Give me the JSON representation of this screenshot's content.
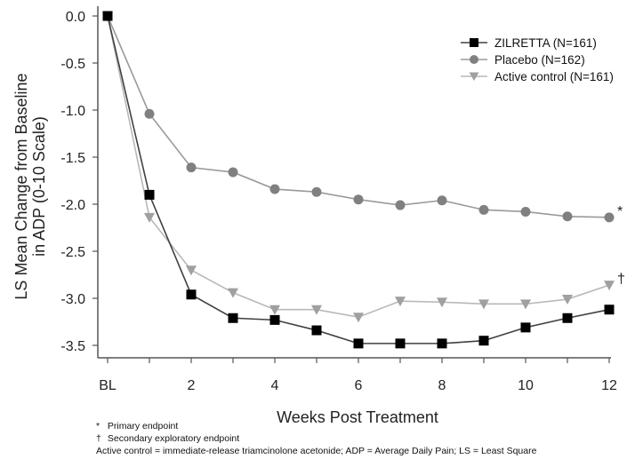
{
  "chart_data": {
    "type": "line",
    "title": "",
    "xlabel": "Weeks Post Treatment",
    "ylabel_lines": [
      "LS Mean Change from Baseline",
      "in ADP (0-10 Scale)"
    ],
    "x": [
      0,
      1,
      2,
      3,
      4,
      5,
      6,
      7,
      8,
      9,
      10,
      11,
      12
    ],
    "x_tick_values": [
      0,
      2,
      4,
      6,
      8,
      10,
      12
    ],
    "x_tick_labels": [
      "BL",
      "2",
      "4",
      "6",
      "8",
      "10",
      "12"
    ],
    "x_minor_ticks": [
      0,
      1,
      2,
      3,
      4,
      5,
      6,
      7,
      8,
      9,
      10,
      11,
      12
    ],
    "xlim": [
      0,
      12
    ],
    "ylim": [
      -3.5,
      0.0
    ],
    "y_ticks": [
      0.0,
      -0.5,
      -1.0,
      -1.5,
      -2.0,
      -2.5,
      -3.0,
      -3.5
    ],
    "y_tick_labels": [
      "0.0",
      "-0.5",
      "-1.0",
      "-1.5",
      "-2.0",
      "-2.5",
      "-3.0",
      "-3.5"
    ],
    "grid": false,
    "legend_position": "top-right",
    "series": [
      {
        "name": "ZILRETTA (N=161)",
        "marker": "square",
        "color": "#000000",
        "line_color": "#404040",
        "values": [
          0.0,
          -1.9,
          -2.96,
          -3.21,
          -3.23,
          -3.34,
          -3.48,
          -3.48,
          -3.48,
          -3.45,
          -3.31,
          -3.21,
          -3.12
        ]
      },
      {
        "name": "Placebo (N=162)",
        "marker": "circle",
        "color": "#808080",
        "line_color": "#9a9a9a",
        "values": [
          0.0,
          -1.04,
          -1.61,
          -1.66,
          -1.84,
          -1.87,
          -1.95,
          -2.01,
          -1.96,
          -2.06,
          -2.08,
          -2.13,
          -2.14
        ],
        "end_annotation": "*"
      },
      {
        "name": "Active control (N=161)",
        "marker": "triangle-down",
        "color": "#a0a0a0",
        "line_color": "#b8b8b8",
        "values": [
          0.0,
          -2.14,
          -2.7,
          -2.94,
          -3.12,
          -3.12,
          -3.2,
          -3.03,
          -3.04,
          -3.06,
          -3.06,
          -3.01,
          -2.86
        ],
        "end_annotation": "†"
      }
    ]
  },
  "footnotes": [
    {
      "symbol": "*",
      "text": "Primary endpoint"
    },
    {
      "symbol": "†",
      "text": "Secondary exploratory endpoint"
    },
    {
      "symbol": "",
      "text": "Active control = immediate-release triamcinolone acetonide; ADP = Average Daily  Pain; LS = Least Square"
    }
  ]
}
